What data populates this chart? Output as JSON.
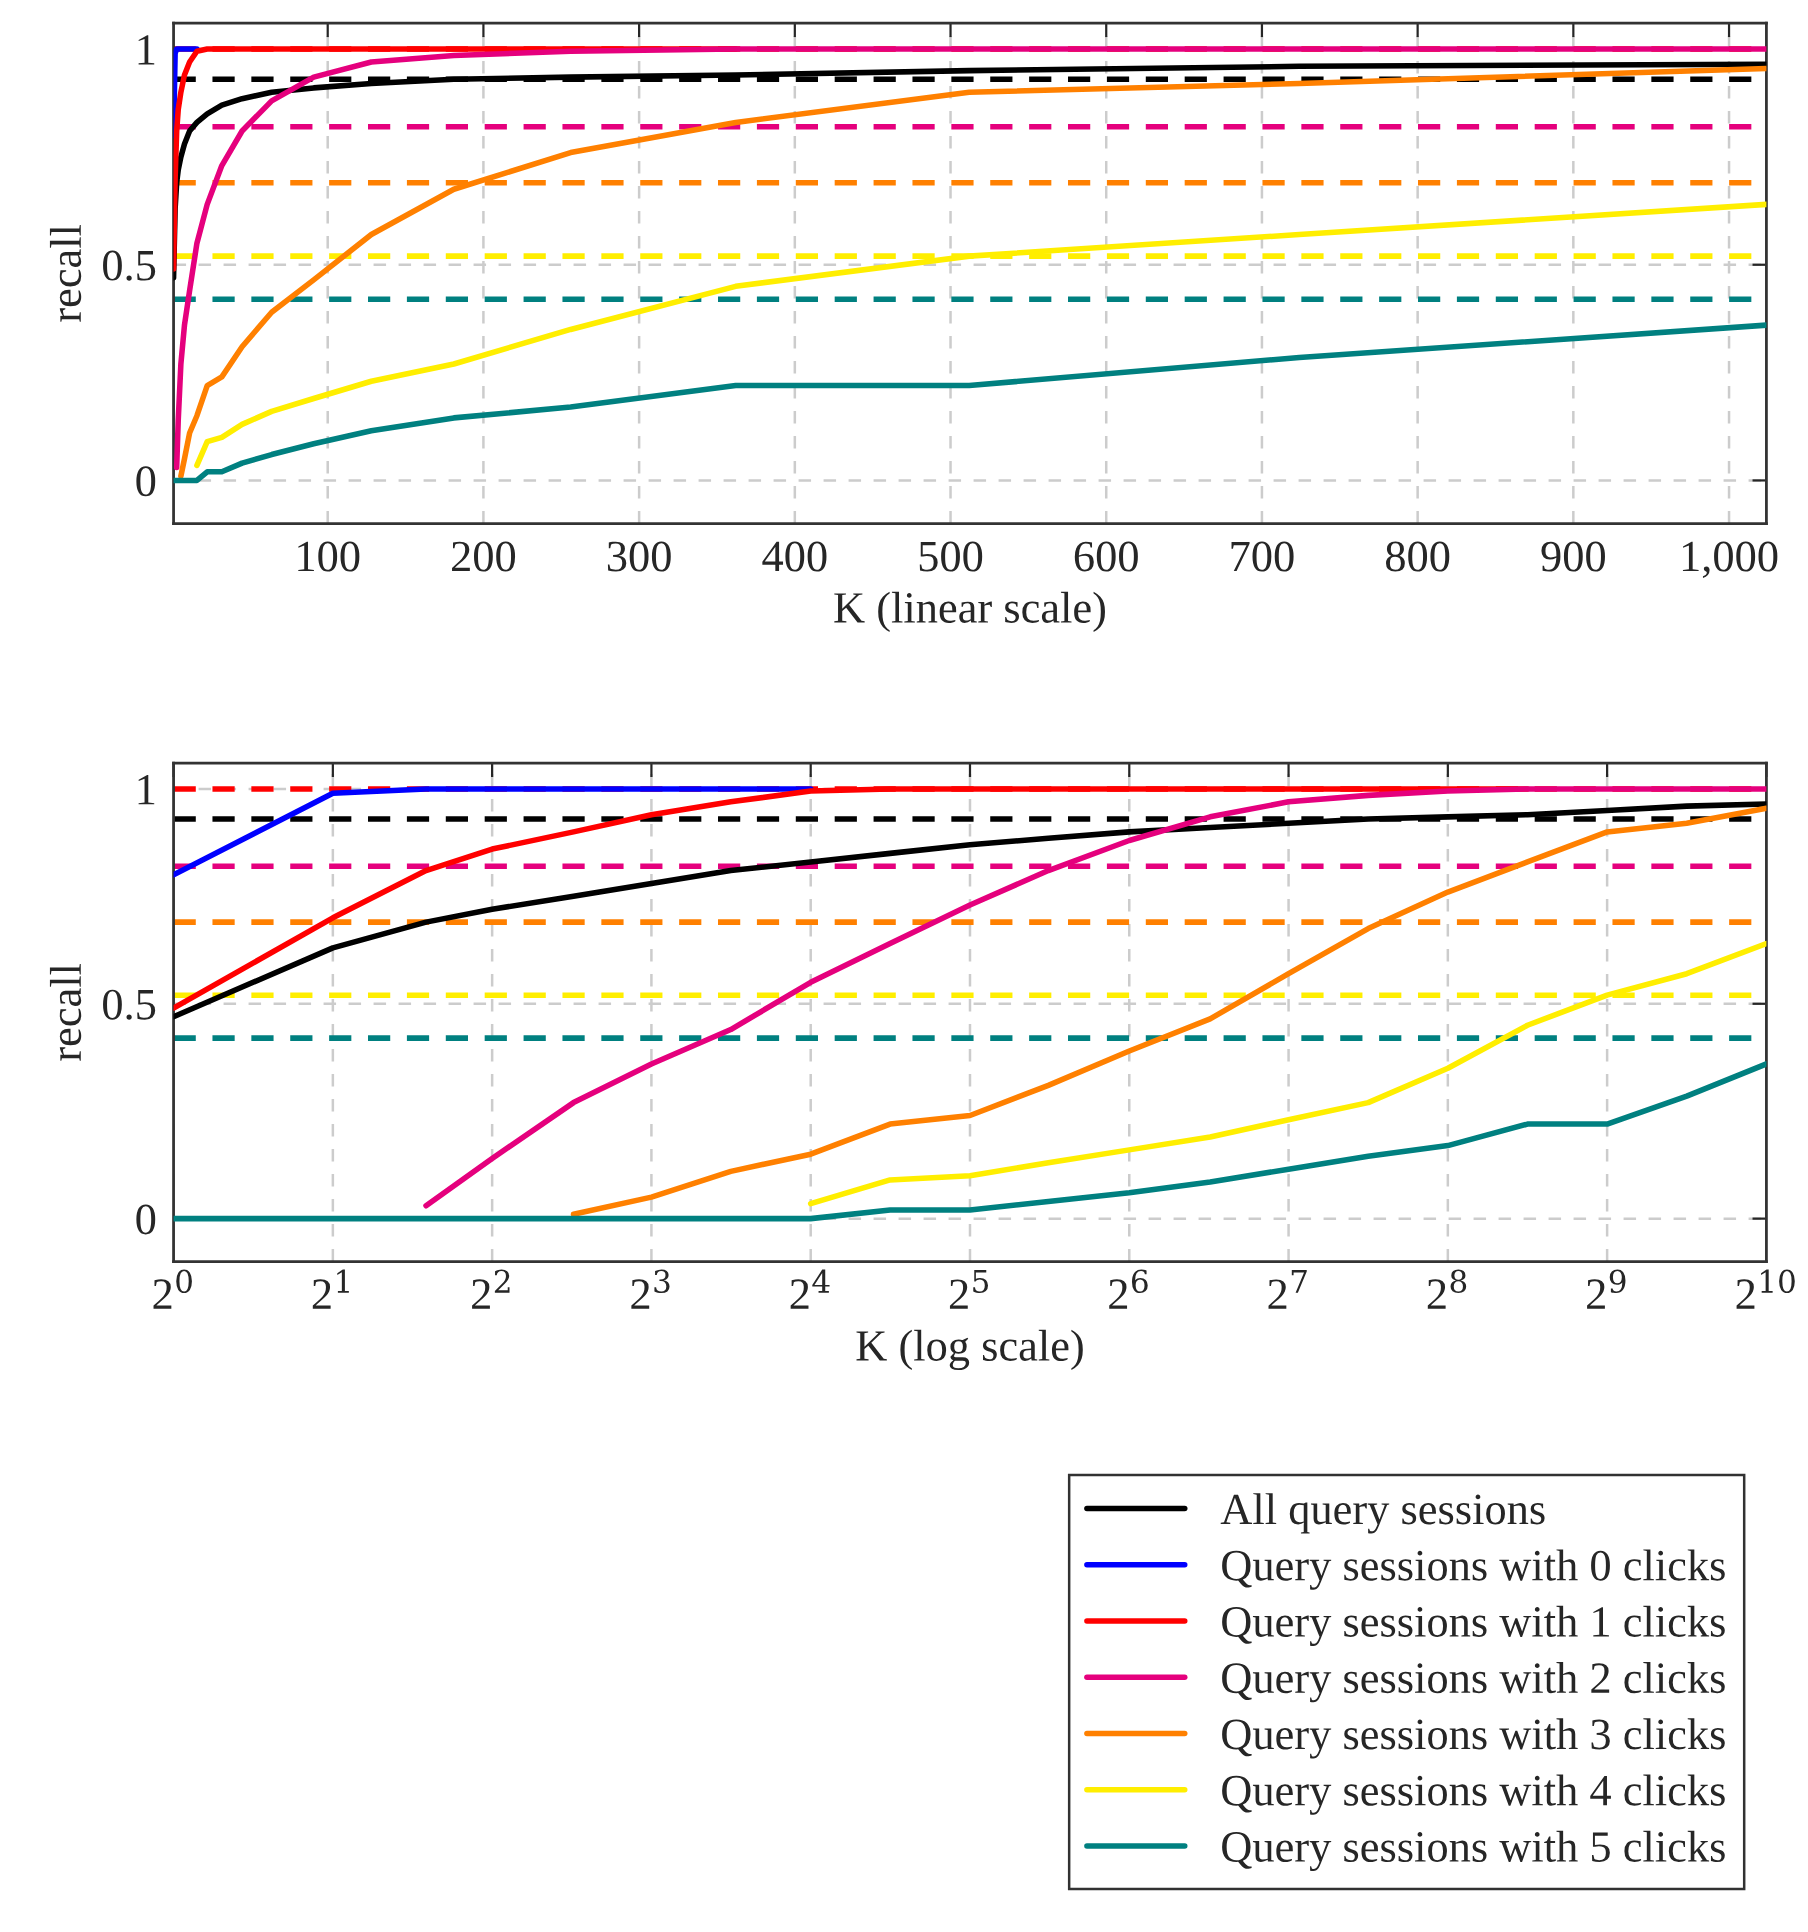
{
  "chart_data": [
    {
      "type": "line",
      "xlabel": "K (linear scale)",
      "ylabel": "recall",
      "x": [
        1,
        2,
        3,
        4,
        5.7,
        8,
        11.3,
        16,
        22.6,
        32,
        45,
        64,
        91,
        128,
        181,
        256,
        362,
        512,
        724,
        1024
      ],
      "series": [
        {
          "color": "#000000",
          "values": [
            0.47,
            0.63,
            0.69,
            0.72,
            0.75,
            0.78,
            0.81,
            0.83,
            0.85,
            0.87,
            0.885,
            0.9,
            0.91,
            0.92,
            0.93,
            0.935,
            0.94,
            0.95,
            0.96,
            0.965
          ]
        },
        {
          "color": "#0000ff",
          "values": [
            0.8,
            0.99,
            1,
            1,
            1,
            1,
            1,
            1,
            null,
            null,
            null,
            null,
            null,
            null,
            null,
            null,
            null,
            null,
            null,
            null
          ]
        },
        {
          "color": "#ff0000",
          "values": [
            0.49,
            0.7,
            0.81,
            0.86,
            0.9,
            0.94,
            0.97,
            0.995,
            1,
            1,
            1,
            1,
            1,
            1,
            1,
            1,
            1,
            null,
            null,
            null
          ]
        },
        {
          "color": "#e5007d",
          "values": [
            null,
            null,
            0.03,
            0.14,
            0.27,
            0.36,
            0.44,
            0.55,
            0.64,
            0.73,
            0.81,
            0.88,
            0.935,
            0.97,
            0.985,
            0.995,
            1,
            1,
            1,
            1
          ]
        },
        {
          "color": "#ff8000",
          "values": [
            null,
            null,
            null,
            null,
            0.01,
            0.05,
            0.11,
            0.15,
            0.22,
            0.24,
            0.31,
            0.39,
            0.465,
            0.57,
            0.675,
            0.76,
            0.83,
            0.9,
            0.92,
            0.955
          ]
        },
        {
          "color": "#ffee00",
          "values": [
            null,
            null,
            null,
            null,
            null,
            null,
            null,
            0.035,
            0.09,
            0.1,
            0.13,
            0.16,
            0.19,
            0.23,
            0.27,
            0.35,
            0.45,
            0.52,
            0.57,
            0.64
          ]
        },
        {
          "color": "#008080",
          "values": [
            0,
            0,
            0,
            0,
            0,
            0,
            0,
            0,
            0.02,
            0.02,
            0.04,
            0.06,
            0.085,
            0.115,
            0.145,
            0.17,
            0.22,
            0.22,
            0.285,
            0.36
          ]
        }
      ],
      "ref_lines": [
        {
          "axis": "y",
          "value": 1,
          "color": "#ff0000",
          "line_style": "dashed"
        },
        {
          "axis": "y",
          "value": 0.93,
          "color": "#000000",
          "line_style": "dashed"
        },
        {
          "axis": "y",
          "value": 0.82,
          "color": "#e5007d",
          "line_style": "dashed"
        },
        {
          "axis": "y",
          "value": 0.69,
          "color": "#ff8000",
          "line_style": "dashed"
        },
        {
          "axis": "y",
          "value": 0.52,
          "color": "#ffee00",
          "line_style": "dashed"
        },
        {
          "axis": "y",
          "value": 0.42,
          "color": "#008080",
          "line_style": "dashed"
        }
      ],
      "xlim": [
        1,
        1024
      ],
      "xticks": [
        100,
        200,
        300,
        400,
        500,
        600,
        700,
        800,
        900,
        {
          "value": 1000,
          "label": "1,000"
        }
      ],
      "ylim": [
        -0.1,
        1.06
      ],
      "yticks": [
        0,
        0.5,
        1
      ],
      "grid": true,
      "line_style": "solid",
      "marker": "none"
    },
    {
      "type": "line",
      "xlabel": "K (log scale)",
      "ylabel": "recall",
      "log": "x",
      "x": [
        1,
        2,
        3,
        4,
        5.7,
        8,
        11.3,
        16,
        22.6,
        32,
        45,
        64,
        91,
        128,
        181,
        256,
        362,
        512,
        724,
        1024
      ],
      "series": [
        {
          "name": "All query sessions",
          "color": "#000000",
          "values": [
            0.47,
            0.63,
            0.69,
            0.72,
            0.75,
            0.78,
            0.81,
            0.83,
            0.85,
            0.87,
            0.885,
            0.9,
            0.91,
            0.92,
            0.93,
            0.935,
            0.94,
            0.95,
            0.96,
            0.965
          ]
        },
        {
          "name": "Query sessions with 0 clicks",
          "color": "#0000ff",
          "values": [
            0.8,
            0.99,
            1,
            1,
            1,
            1,
            1,
            1,
            null,
            null,
            null,
            null,
            null,
            null,
            null,
            null,
            null,
            null,
            null,
            null
          ]
        },
        {
          "name": "Query sessions with 1 clicks",
          "color": "#ff0000",
          "values": [
            0.49,
            0.7,
            0.81,
            0.86,
            0.9,
            0.94,
            0.97,
            0.995,
            1,
            1,
            1,
            1,
            1,
            1,
            1,
            1,
            1,
            null,
            null,
            null
          ]
        },
        {
          "name": "Query sessions with 2 clicks",
          "color": "#e5007d",
          "values": [
            null,
            null,
            0.03,
            0.14,
            0.27,
            0.36,
            0.44,
            0.55,
            0.64,
            0.73,
            0.81,
            0.88,
            0.935,
            0.97,
            0.985,
            0.995,
            1,
            1,
            1,
            1
          ]
        },
        {
          "name": "Query sessions with 3 clicks",
          "color": "#ff8000",
          "values": [
            null,
            null,
            null,
            null,
            0.01,
            0.05,
            0.11,
            0.15,
            0.22,
            0.24,
            0.31,
            0.39,
            0.465,
            0.57,
            0.675,
            0.76,
            0.83,
            0.9,
            0.92,
            0.955
          ]
        },
        {
          "name": "Query sessions with 4 clicks",
          "color": "#ffee00",
          "values": [
            null,
            null,
            null,
            null,
            null,
            null,
            null,
            0.035,
            0.09,
            0.1,
            0.13,
            0.16,
            0.19,
            0.23,
            0.27,
            0.35,
            0.45,
            0.52,
            0.57,
            0.64
          ]
        },
        {
          "name": "Query sessions with 5 clicks",
          "color": "#008080",
          "values": [
            0,
            0,
            0,
            0,
            0,
            0,
            0,
            0,
            0.02,
            0.02,
            0.04,
            0.06,
            0.085,
            0.115,
            0.145,
            0.17,
            0.22,
            0.22,
            0.285,
            0.36
          ]
        }
      ],
      "ref_lines": [
        {
          "axis": "y",
          "value": 1,
          "color": "#ff0000",
          "line_style": "dashed"
        },
        {
          "axis": "y",
          "value": 0.93,
          "color": "#000000",
          "line_style": "dashed"
        },
        {
          "axis": "y",
          "value": 0.82,
          "color": "#e5007d",
          "line_style": "dashed"
        },
        {
          "axis": "y",
          "value": 0.69,
          "color": "#ff8000",
          "line_style": "dashed"
        },
        {
          "axis": "y",
          "value": 0.52,
          "color": "#ffee00",
          "line_style": "dashed"
        },
        {
          "axis": "y",
          "value": 0.42,
          "color": "#008080",
          "line_style": "dashed"
        }
      ],
      "xlim": [
        1,
        1024
      ],
      "xticks": [
        {
          "value": 1,
          "label": "2$^{0}$"
        },
        {
          "value": 2,
          "label": "2$^{1}$"
        },
        {
          "value": 4,
          "label": "2$^{2}$"
        },
        {
          "value": 8,
          "label": "2$^{3}$"
        },
        {
          "value": 16,
          "label": "2$^{4}$"
        },
        {
          "value": 32,
          "label": "2$^{5}$"
        },
        {
          "value": 64,
          "label": "2$^{6}$"
        },
        {
          "value": 128,
          "label": "2$^{7}$"
        },
        {
          "value": 256,
          "label": "2$^{8}$"
        },
        {
          "value": 512,
          "label": "2$^{9}$"
        },
        {
          "value": 1024,
          "label": "2$^{10}$"
        }
      ],
      "ylim": [
        -0.1,
        1.06
      ],
      "yticks": [
        0,
        0.5,
        1
      ],
      "grid": true,
      "legend": "bottom right",
      "line_style": "solid",
      "marker": "none"
    }
  ]
}
